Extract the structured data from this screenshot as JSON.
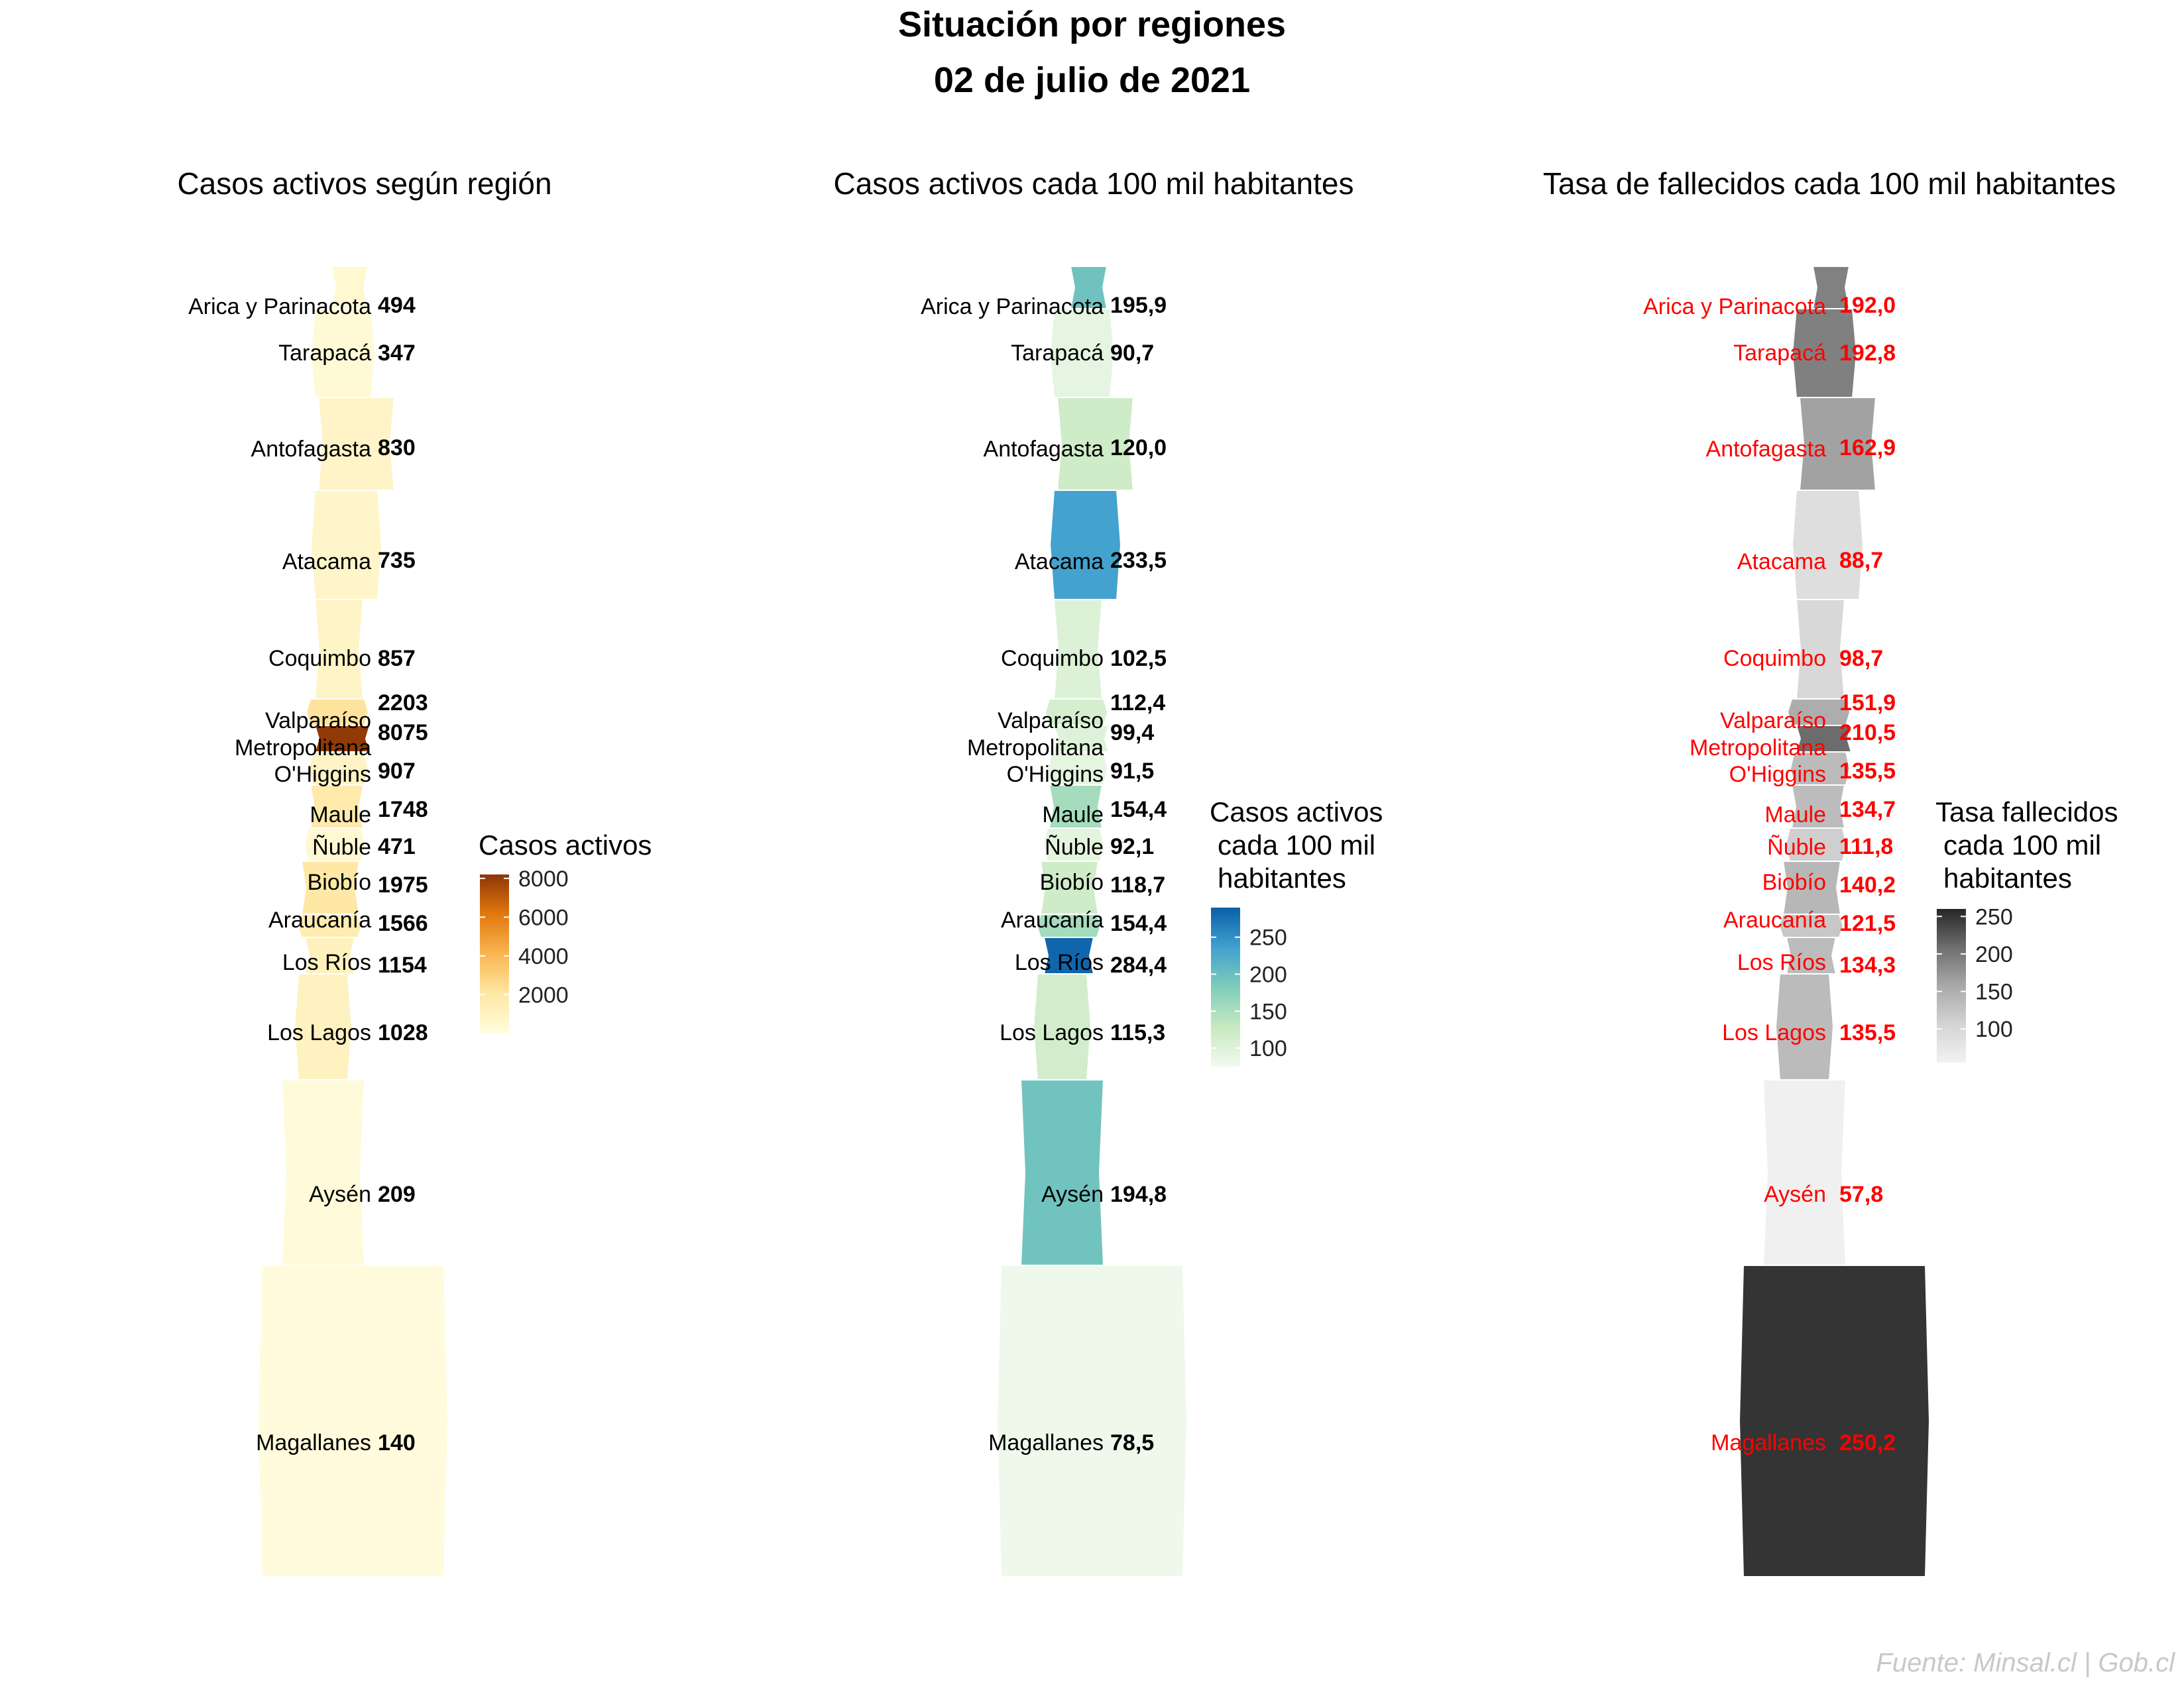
{
  "header": {
    "title": "Situación por regiones",
    "date": "02 de julio de 2021"
  },
  "source": "Fuente: Minsal.cl | Gob.cl",
  "maps": [
    {
      "title": "Casos activos según región",
      "legend_title": [
        "Casos activos"
      ],
      "legend_ticks": [
        2000,
        4000,
        6000,
        8000
      ],
      "legend_range": [
        0,
        8200
      ],
      "legend_colors": [
        "#fffde0",
        "#ffe7a3",
        "#f8b651",
        "#e2780e",
        "#8d3606"
      ],
      "label_color": "#000000",
      "values": [
        "494",
        "347",
        "830",
        "735",
        "857",
        "2203",
        "8075",
        "907",
        "1748",
        "471",
        "1975",
        "1566",
        "1154",
        "1028",
        "209",
        "140"
      ],
      "raw": [
        494,
        347,
        830,
        735,
        857,
        2203,
        8075,
        907,
        1748,
        471,
        1975,
        1566,
        1154,
        1028,
        209,
        140
      ]
    },
    {
      "title": "Casos activos cada 100 mil habitantes",
      "legend_title": [
        "Casos activos",
        "cada 100 mil",
        "habitantes"
      ],
      "legend_ticks": [
        100,
        150,
        200,
        250
      ],
      "legend_range": [
        75,
        290
      ],
      "legend_colors": [
        "#f1faee",
        "#c7e9c0",
        "#7fcdbb",
        "#41a0cf",
        "#0a5fa8"
      ],
      "label_color": "#000000",
      "values": [
        "195,9",
        "90,7",
        "120,0",
        "233,5",
        "102,5",
        "112,4",
        "99,4",
        "91,5",
        "154,4",
        "92,1",
        "118,7",
        "154,4",
        "284,4",
        "115,3",
        "194,8",
        "78,5"
      ],
      "raw": [
        195.9,
        90.7,
        120.0,
        233.5,
        102.5,
        112.4,
        99.4,
        91.5,
        154.4,
        92.1,
        118.7,
        154.4,
        284.4,
        115.3,
        194.8,
        78.5
      ]
    },
    {
      "title": "Tasa de fallecidos cada 100 mil habitantes",
      "legend_title": [
        "Tasa fallecidos",
        "cada 100 mil",
        "habitantes"
      ],
      "legend_ticks": [
        100,
        150,
        200,
        250
      ],
      "legend_range": [
        55,
        260
      ],
      "legend_colors": [
        "#f2f2f2",
        "#d4d4d4",
        "#a8a8a8",
        "#6e6e6e",
        "#262626"
      ],
      "label_color": "#ff0000",
      "values": [
        "192,0",
        "192,8",
        "162,9",
        "88,7",
        "98,7",
        "151,9",
        "210,5",
        "135,5",
        "134,7",
        "111,8",
        "140,2",
        "121,5",
        "134,3",
        "135,5",
        "57,8",
        "250,2"
      ],
      "raw": [
        192.0,
        192.8,
        162.9,
        88.7,
        98.7,
        151.9,
        210.5,
        135.5,
        134.7,
        111.8,
        140.2,
        121.5,
        134.3,
        135.5,
        57.8,
        250.2
      ]
    }
  ],
  "regions": [
    "Arica y Parinacota",
    "Tarapacá",
    "Antofagasta",
    "Atacama",
    "Coquimbo",
    "Valparaíso",
    "Metropolitana",
    "O'Higgins",
    "Maule",
    "Ñuble",
    "Biobío",
    "Araucanía",
    "Los Ríos",
    "Los Lagos",
    "Aysén",
    "Magallanes"
  ]
}
